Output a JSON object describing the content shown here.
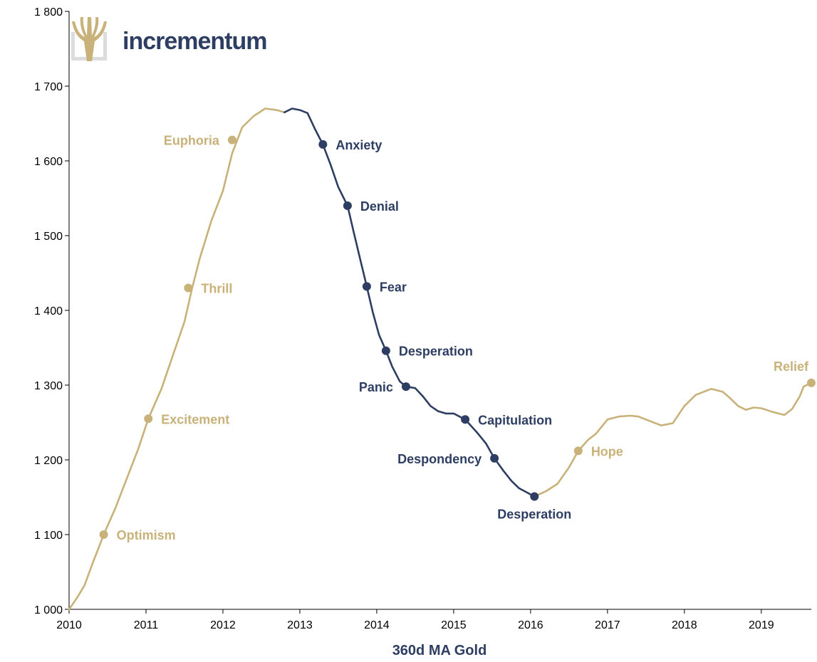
{
  "logo": {
    "text": "incrementum",
    "text_color": "#2e3e62",
    "mark_color": "#c8b27a"
  },
  "colors": {
    "optimism_phase": "#c8b27a",
    "pessimism_phase": "#2e3e62"
  },
  "chart_data": {
    "type": "line",
    "title": "",
    "xlabel": "360d MA Gold",
    "ylabel": "",
    "xlim": [
      2010.0,
      2019.65
    ],
    "ylim": [
      1000,
      1800
    ],
    "x_ticks": [
      2010,
      2011,
      2012,
      2013,
      2014,
      2015,
      2016,
      2017,
      2018,
      2019
    ],
    "x_tick_labels": [
      "2010",
      "2011",
      "2012",
      "2013",
      "2014",
      "2015",
      "2016",
      "2017",
      "2018",
      "2019"
    ],
    "y_ticks": [
      1000,
      1100,
      1200,
      1300,
      1400,
      1500,
      1600,
      1700,
      1800
    ],
    "y_tick_labels": [
      "1 000",
      "1 100",
      "1 200",
      "1 300",
      "1 400",
      "1 500",
      "1 600",
      "1 700",
      "1 800"
    ],
    "series": [
      {
        "phase": "rise",
        "color": "#c8b27a",
        "points": [
          [
            2010.0,
            1000
          ],
          [
            2010.1,
            1015
          ],
          [
            2010.2,
            1032
          ],
          [
            2010.3,
            1060
          ],
          [
            2010.45,
            1100
          ],
          [
            2010.6,
            1135
          ],
          [
            2010.75,
            1175
          ],
          [
            2010.9,
            1215
          ],
          [
            2011.03,
            1255
          ],
          [
            2011.2,
            1295
          ],
          [
            2011.35,
            1340
          ],
          [
            2011.5,
            1385
          ],
          [
            2011.6,
            1430
          ],
          [
            2011.7,
            1470
          ],
          [
            2011.85,
            1520
          ],
          [
            2012.0,
            1560
          ],
          [
            2012.12,
            1610
          ],
          [
            2012.25,
            1645
          ],
          [
            2012.4,
            1660
          ],
          [
            2012.55,
            1670
          ],
          [
            2012.7,
            1668
          ],
          [
            2012.8,
            1665
          ]
        ]
      },
      {
        "phase": "fall",
        "color": "#2e3e62",
        "points": [
          [
            2012.8,
            1665
          ],
          [
            2012.9,
            1670
          ],
          [
            2013.0,
            1668
          ],
          [
            2013.1,
            1664
          ],
          [
            2013.2,
            1642
          ],
          [
            2013.3,
            1622
          ],
          [
            2013.4,
            1595
          ],
          [
            2013.5,
            1565
          ],
          [
            2013.62,
            1540
          ],
          [
            2013.7,
            1505
          ],
          [
            2013.8,
            1462
          ],
          [
            2013.87,
            1432
          ],
          [
            2013.95,
            1397
          ],
          [
            2014.03,
            1367
          ],
          [
            2014.12,
            1346
          ],
          [
            2014.2,
            1325
          ],
          [
            2014.3,
            1305
          ],
          [
            2014.38,
            1298
          ],
          [
            2014.5,
            1296
          ],
          [
            2014.6,
            1285
          ],
          [
            2014.7,
            1272
          ],
          [
            2014.8,
            1265
          ],
          [
            2014.9,
            1262
          ],
          [
            2015.0,
            1262
          ],
          [
            2015.15,
            1254
          ],
          [
            2015.3,
            1237
          ],
          [
            2015.42,
            1222
          ],
          [
            2015.53,
            1202
          ],
          [
            2015.65,
            1185
          ],
          [
            2015.75,
            1172
          ],
          [
            2015.85,
            1162
          ],
          [
            2016.05,
            1151
          ]
        ]
      },
      {
        "phase": "recovery",
        "color": "#c8b27a",
        "points": [
          [
            2016.05,
            1151
          ],
          [
            2016.2,
            1158
          ],
          [
            2016.35,
            1168
          ],
          [
            2016.5,
            1190
          ],
          [
            2016.62,
            1212
          ],
          [
            2016.75,
            1227
          ],
          [
            2016.85,
            1235
          ],
          [
            2017.0,
            1254
          ],
          [
            2017.15,
            1258
          ],
          [
            2017.3,
            1259
          ],
          [
            2017.4,
            1258
          ],
          [
            2017.55,
            1252
          ],
          [
            2017.7,
            1246
          ],
          [
            2017.85,
            1249
          ],
          [
            2018.0,
            1272
          ],
          [
            2018.15,
            1287
          ],
          [
            2018.35,
            1295
          ],
          [
            2018.5,
            1291
          ],
          [
            2018.6,
            1282
          ],
          [
            2018.7,
            1272
          ],
          [
            2018.8,
            1267
          ],
          [
            2018.9,
            1270
          ],
          [
            2019.0,
            1269
          ],
          [
            2019.15,
            1264
          ],
          [
            2019.3,
            1260
          ],
          [
            2019.4,
            1268
          ],
          [
            2019.5,
            1285
          ],
          [
            2019.55,
            1298
          ],
          [
            2019.65,
            1303
          ]
        ]
      }
    ],
    "annotations": [
      {
        "label": "Optimism",
        "x": 2010.45,
        "y": 1100,
        "color": "#c8b27a",
        "side": "right"
      },
      {
        "label": "Excitement",
        "x": 2011.03,
        "y": 1255,
        "color": "#c8b27a",
        "side": "right"
      },
      {
        "label": "Thrill",
        "x": 2011.55,
        "y": 1430,
        "color": "#c8b27a",
        "side": "right"
      },
      {
        "label": "Euphoria",
        "x": 2012.12,
        "y": 1628,
        "color": "#c8b27a",
        "side": "left"
      },
      {
        "label": "Anxiety",
        "x": 2013.3,
        "y": 1622,
        "color": "#2e3e62",
        "side": "right"
      },
      {
        "label": "Denial",
        "x": 2013.62,
        "y": 1540,
        "color": "#2e3e62",
        "side": "right"
      },
      {
        "label": "Fear",
        "x": 2013.87,
        "y": 1432,
        "color": "#2e3e62",
        "side": "right"
      },
      {
        "label": "Desperation",
        "x": 2014.12,
        "y": 1346,
        "color": "#2e3e62",
        "side": "right"
      },
      {
        "label": "Panic",
        "x": 2014.38,
        "y": 1298,
        "color": "#2e3e62",
        "side": "left"
      },
      {
        "label": "Capitulation",
        "x": 2015.15,
        "y": 1254,
        "color": "#2e3e62",
        "side": "right"
      },
      {
        "label": "Despondency",
        "x": 2015.53,
        "y": 1202,
        "color": "#2e3e62",
        "side": "left"
      },
      {
        "label": "Desperation",
        "x": 2016.05,
        "y": 1151,
        "color": "#2e3e62",
        "side": "below"
      },
      {
        "label": "Hope",
        "x": 2016.62,
        "y": 1212,
        "color": "#c8b27a",
        "side": "right"
      },
      {
        "label": "Relief",
        "x": 2019.65,
        "y": 1303,
        "color": "#c8b27a",
        "side": "above-left"
      }
    ]
  }
}
